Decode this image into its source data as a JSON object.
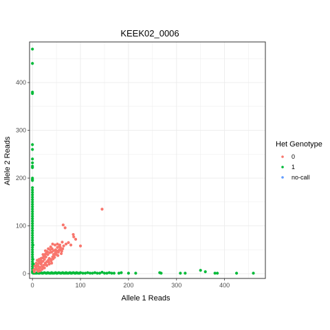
{
  "chart_data": {
    "type": "scatter",
    "title": "KEEK02_0006",
    "xlabel": "Allele 1 Reads",
    "ylabel": "Allele 2 Reads",
    "xlim": [
      -6,
      485
    ],
    "ylim": [
      -10,
      485
    ],
    "x_ticks": [
      0,
      100,
      200,
      300,
      400
    ],
    "y_ticks": [
      0,
      100,
      200,
      300,
      400
    ],
    "grid": true,
    "legend_title": "Het Genotype",
    "legend_position": "right",
    "colors": {
      "0": "#F8766D",
      "1": "#00BA38",
      "no-call": "#619CFF"
    },
    "series": [
      {
        "name": "0",
        "points": [
          [
            4,
            4
          ],
          [
            6,
            9
          ],
          [
            8,
            12
          ],
          [
            10,
            8
          ],
          [
            12,
            16
          ],
          [
            14,
            11
          ],
          [
            9,
            18
          ],
          [
            15,
            22
          ],
          [
            16,
            13
          ],
          [
            18,
            20
          ],
          [
            20,
            15
          ],
          [
            22,
            26
          ],
          [
            24,
            18
          ],
          [
            25,
            30
          ],
          [
            27,
            22
          ],
          [
            28,
            35
          ],
          [
            30,
            25
          ],
          [
            32,
            40
          ],
          [
            33,
            28
          ],
          [
            35,
            32
          ],
          [
            36,
            44
          ],
          [
            38,
            30
          ],
          [
            40,
            45
          ],
          [
            42,
            35
          ],
          [
            44,
            48
          ],
          [
            45,
            38
          ],
          [
            47,
            42
          ],
          [
            48,
            50
          ],
          [
            50,
            40
          ],
          [
            52,
            55
          ],
          [
            54,
            45
          ],
          [
            55,
            48
          ],
          [
            57,
            60
          ],
          [
            58,
            50
          ],
          [
            60,
            42
          ],
          [
            62,
            66
          ],
          [
            63,
            52
          ],
          [
            13,
            26
          ],
          [
            21,
            33
          ],
          [
            26,
            40
          ],
          [
            31,
            46
          ],
          [
            37,
            50
          ],
          [
            11,
            20
          ],
          [
            17,
            28
          ],
          [
            23,
            12
          ],
          [
            29,
            18
          ],
          [
            34,
            24
          ],
          [
            39,
            27
          ],
          [
            43,
            31
          ],
          [
            46,
            34
          ],
          [
            7,
            14
          ],
          [
            19,
            24
          ],
          [
            24,
            36
          ],
          [
            41,
            52
          ],
          [
            49,
            45
          ],
          [
            53,
            38
          ],
          [
            56,
            57
          ],
          [
            64,
            102
          ],
          [
            68,
            96
          ],
          [
            85,
            82
          ],
          [
            86,
            77
          ],
          [
            90,
            72
          ],
          [
            100,
            58
          ],
          [
            145,
            135
          ],
          [
            10,
            28
          ],
          [
            5,
            16
          ],
          [
            3,
            8
          ],
          [
            12,
            5
          ],
          [
            16,
            6
          ],
          [
            20,
            9
          ],
          [
            25,
            12
          ],
          [
            30,
            17
          ],
          [
            35,
            20
          ],
          [
            40,
            22
          ],
          [
            18,
            32
          ],
          [
            28,
            42
          ],
          [
            44,
            40
          ],
          [
            50,
            48
          ],
          [
            58,
            55
          ],
          [
            61,
            47
          ],
          [
            65,
            58
          ],
          [
            70,
            62
          ],
          [
            75,
            65
          ],
          [
            80,
            60
          ],
          [
            8,
            22
          ],
          [
            14,
            30
          ],
          [
            22,
            40
          ],
          [
            27,
            48
          ],
          [
            33,
            52
          ],
          [
            47,
            60
          ],
          [
            52,
            62
          ],
          [
            56,
            50
          ],
          [
            38,
            56
          ],
          [
            42,
            62
          ]
        ]
      },
      {
        "name": "1",
        "points": [
          [
            0,
            470
          ],
          [
            0,
            440
          ],
          [
            0,
            380
          ],
          [
            0,
            377
          ],
          [
            0,
            270
          ],
          [
            0,
            260
          ],
          [
            0,
            240
          ],
          [
            0,
            232
          ],
          [
            0,
            225
          ],
          [
            0,
            222
          ],
          [
            0,
            200
          ],
          [
            0,
            197
          ],
          [
            0,
            195
          ],
          [
            0,
            180
          ],
          [
            0,
            175
          ],
          [
            0,
            170
          ],
          [
            0,
            165
          ],
          [
            0,
            160
          ],
          [
            0,
            155
          ],
          [
            0,
            150
          ],
          [
            0,
            145
          ],
          [
            0,
            140
          ],
          [
            0,
            135
          ],
          [
            0,
            130
          ],
          [
            0,
            125
          ],
          [
            0,
            120
          ],
          [
            0,
            115
          ],
          [
            0,
            110
          ],
          [
            0,
            105
          ],
          [
            0,
            100
          ],
          [
            0,
            95
          ],
          [
            0,
            90
          ],
          [
            0,
            85
          ],
          [
            0,
            80
          ],
          [
            0,
            75
          ],
          [
            0,
            70
          ],
          [
            0,
            65
          ],
          [
            0,
            60
          ],
          [
            0,
            55
          ],
          [
            0,
            50
          ],
          [
            0,
            45
          ],
          [
            0,
            40
          ],
          [
            0,
            35
          ],
          [
            0,
            30
          ],
          [
            0,
            25
          ],
          [
            0,
            20
          ],
          [
            0,
            15
          ],
          [
            0,
            10
          ],
          [
            0,
            5
          ],
          [
            0,
            2
          ],
          [
            1,
            60
          ],
          [
            1,
            30
          ],
          [
            1,
            10
          ],
          [
            2,
            20
          ],
          [
            2,
            3
          ],
          [
            2,
            1
          ],
          [
            5,
            1
          ],
          [
            8,
            1
          ],
          [
            10,
            2
          ],
          [
            12,
            1
          ],
          [
            15,
            1
          ],
          [
            18,
            2
          ],
          [
            20,
            1
          ],
          [
            22,
            1
          ],
          [
            25,
            2
          ],
          [
            28,
            1
          ],
          [
            30,
            1
          ],
          [
            32,
            2
          ],
          [
            35,
            1
          ],
          [
            38,
            1
          ],
          [
            40,
            2
          ],
          [
            42,
            1
          ],
          [
            45,
            1
          ],
          [
            48,
            2
          ],
          [
            50,
            1
          ],
          [
            52,
            1
          ],
          [
            55,
            2
          ],
          [
            58,
            1
          ],
          [
            60,
            1
          ],
          [
            63,
            2
          ],
          [
            65,
            1
          ],
          [
            68,
            1
          ],
          [
            70,
            2
          ],
          [
            72,
            1
          ],
          [
            75,
            1
          ],
          [
            78,
            2
          ],
          [
            80,
            1
          ],
          [
            82,
            1
          ],
          [
            85,
            2
          ],
          [
            88,
            1
          ],
          [
            90,
            1
          ],
          [
            92,
            2
          ],
          [
            95,
            1
          ],
          [
            98,
            1
          ],
          [
            100,
            2
          ],
          [
            105,
            1
          ],
          [
            110,
            1
          ],
          [
            115,
            2
          ],
          [
            120,
            1
          ],
          [
            125,
            1
          ],
          [
            130,
            2
          ],
          [
            135,
            1
          ],
          [
            140,
            1
          ],
          [
            145,
            3
          ],
          [
            150,
            1
          ],
          [
            155,
            1
          ],
          [
            160,
            2
          ],
          [
            165,
            1
          ],
          [
            170,
            1
          ],
          [
            180,
            1
          ],
          [
            185,
            2
          ],
          [
            200,
            1
          ],
          [
            215,
            1
          ],
          [
            265,
            2
          ],
          [
            268,
            1
          ],
          [
            308,
            1
          ],
          [
            318,
            1
          ],
          [
            350,
            7
          ],
          [
            360,
            4
          ],
          [
            380,
            1
          ],
          [
            385,
            1
          ],
          [
            425,
            1
          ],
          [
            460,
            1
          ]
        ]
      },
      {
        "name": "no-call",
        "points": []
      }
    ]
  }
}
